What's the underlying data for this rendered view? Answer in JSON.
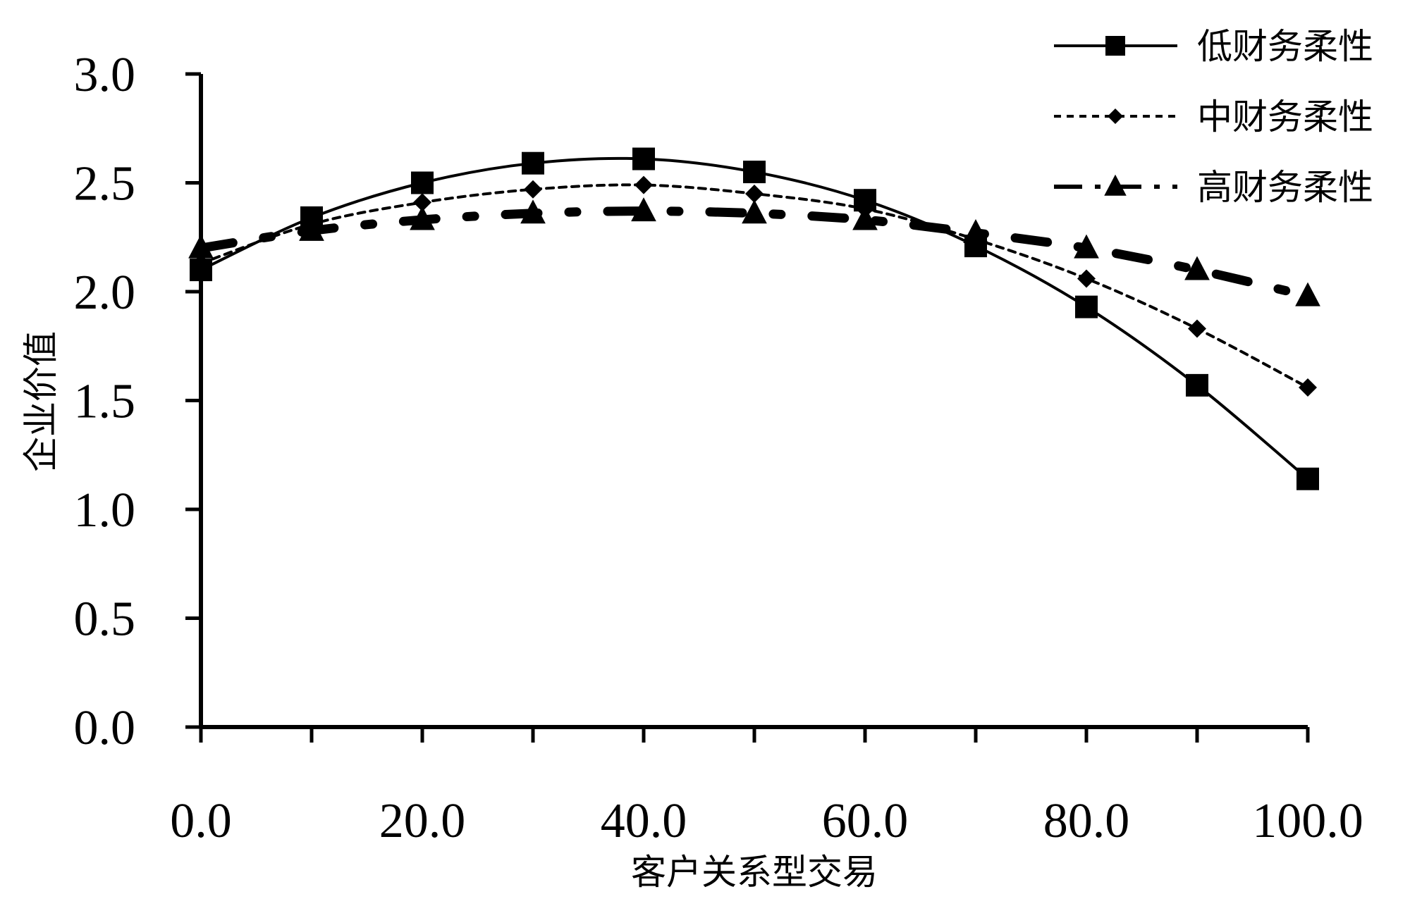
{
  "chart_data": {
    "type": "line",
    "xlabel": "客户关系型交易",
    "ylabel": "企业价值",
    "xlim": [
      0,
      100
    ],
    "ylim": [
      0,
      3
    ],
    "x_ticks": [
      "0.0",
      "20.0",
      "40.0",
      "60.0",
      "80.0",
      "100.0"
    ],
    "y_ticks": [
      "0.0",
      "0.5",
      "1.0",
      "1.5",
      "2.0",
      "2.5",
      "3.0"
    ],
    "grid": false,
    "legend_position": "top-right",
    "x": [
      0,
      10,
      20,
      30,
      40,
      50,
      60,
      70,
      80,
      90,
      100
    ],
    "series": [
      {
        "name": "低财务柔性",
        "marker": "square",
        "line_style": "solid",
        "color": "#000000",
        "values": [
          2.1,
          2.34,
          2.5,
          2.59,
          2.61,
          2.55,
          2.42,
          2.21,
          1.93,
          1.57,
          1.14
        ]
      },
      {
        "name": "中财务柔性",
        "marker": "diamond",
        "line_style": "dashed",
        "color": "#000000",
        "values": [
          2.13,
          2.31,
          2.41,
          2.47,
          2.49,
          2.45,
          2.38,
          2.24,
          2.06,
          1.83,
          1.56
        ]
      },
      {
        "name": "高财务柔性",
        "marker": "triangle",
        "line_style": "dash-dot",
        "color": "#000000",
        "values": [
          2.2,
          2.28,
          2.33,
          2.36,
          2.37,
          2.36,
          2.33,
          2.27,
          2.2,
          2.1,
          1.98
        ]
      }
    ]
  }
}
